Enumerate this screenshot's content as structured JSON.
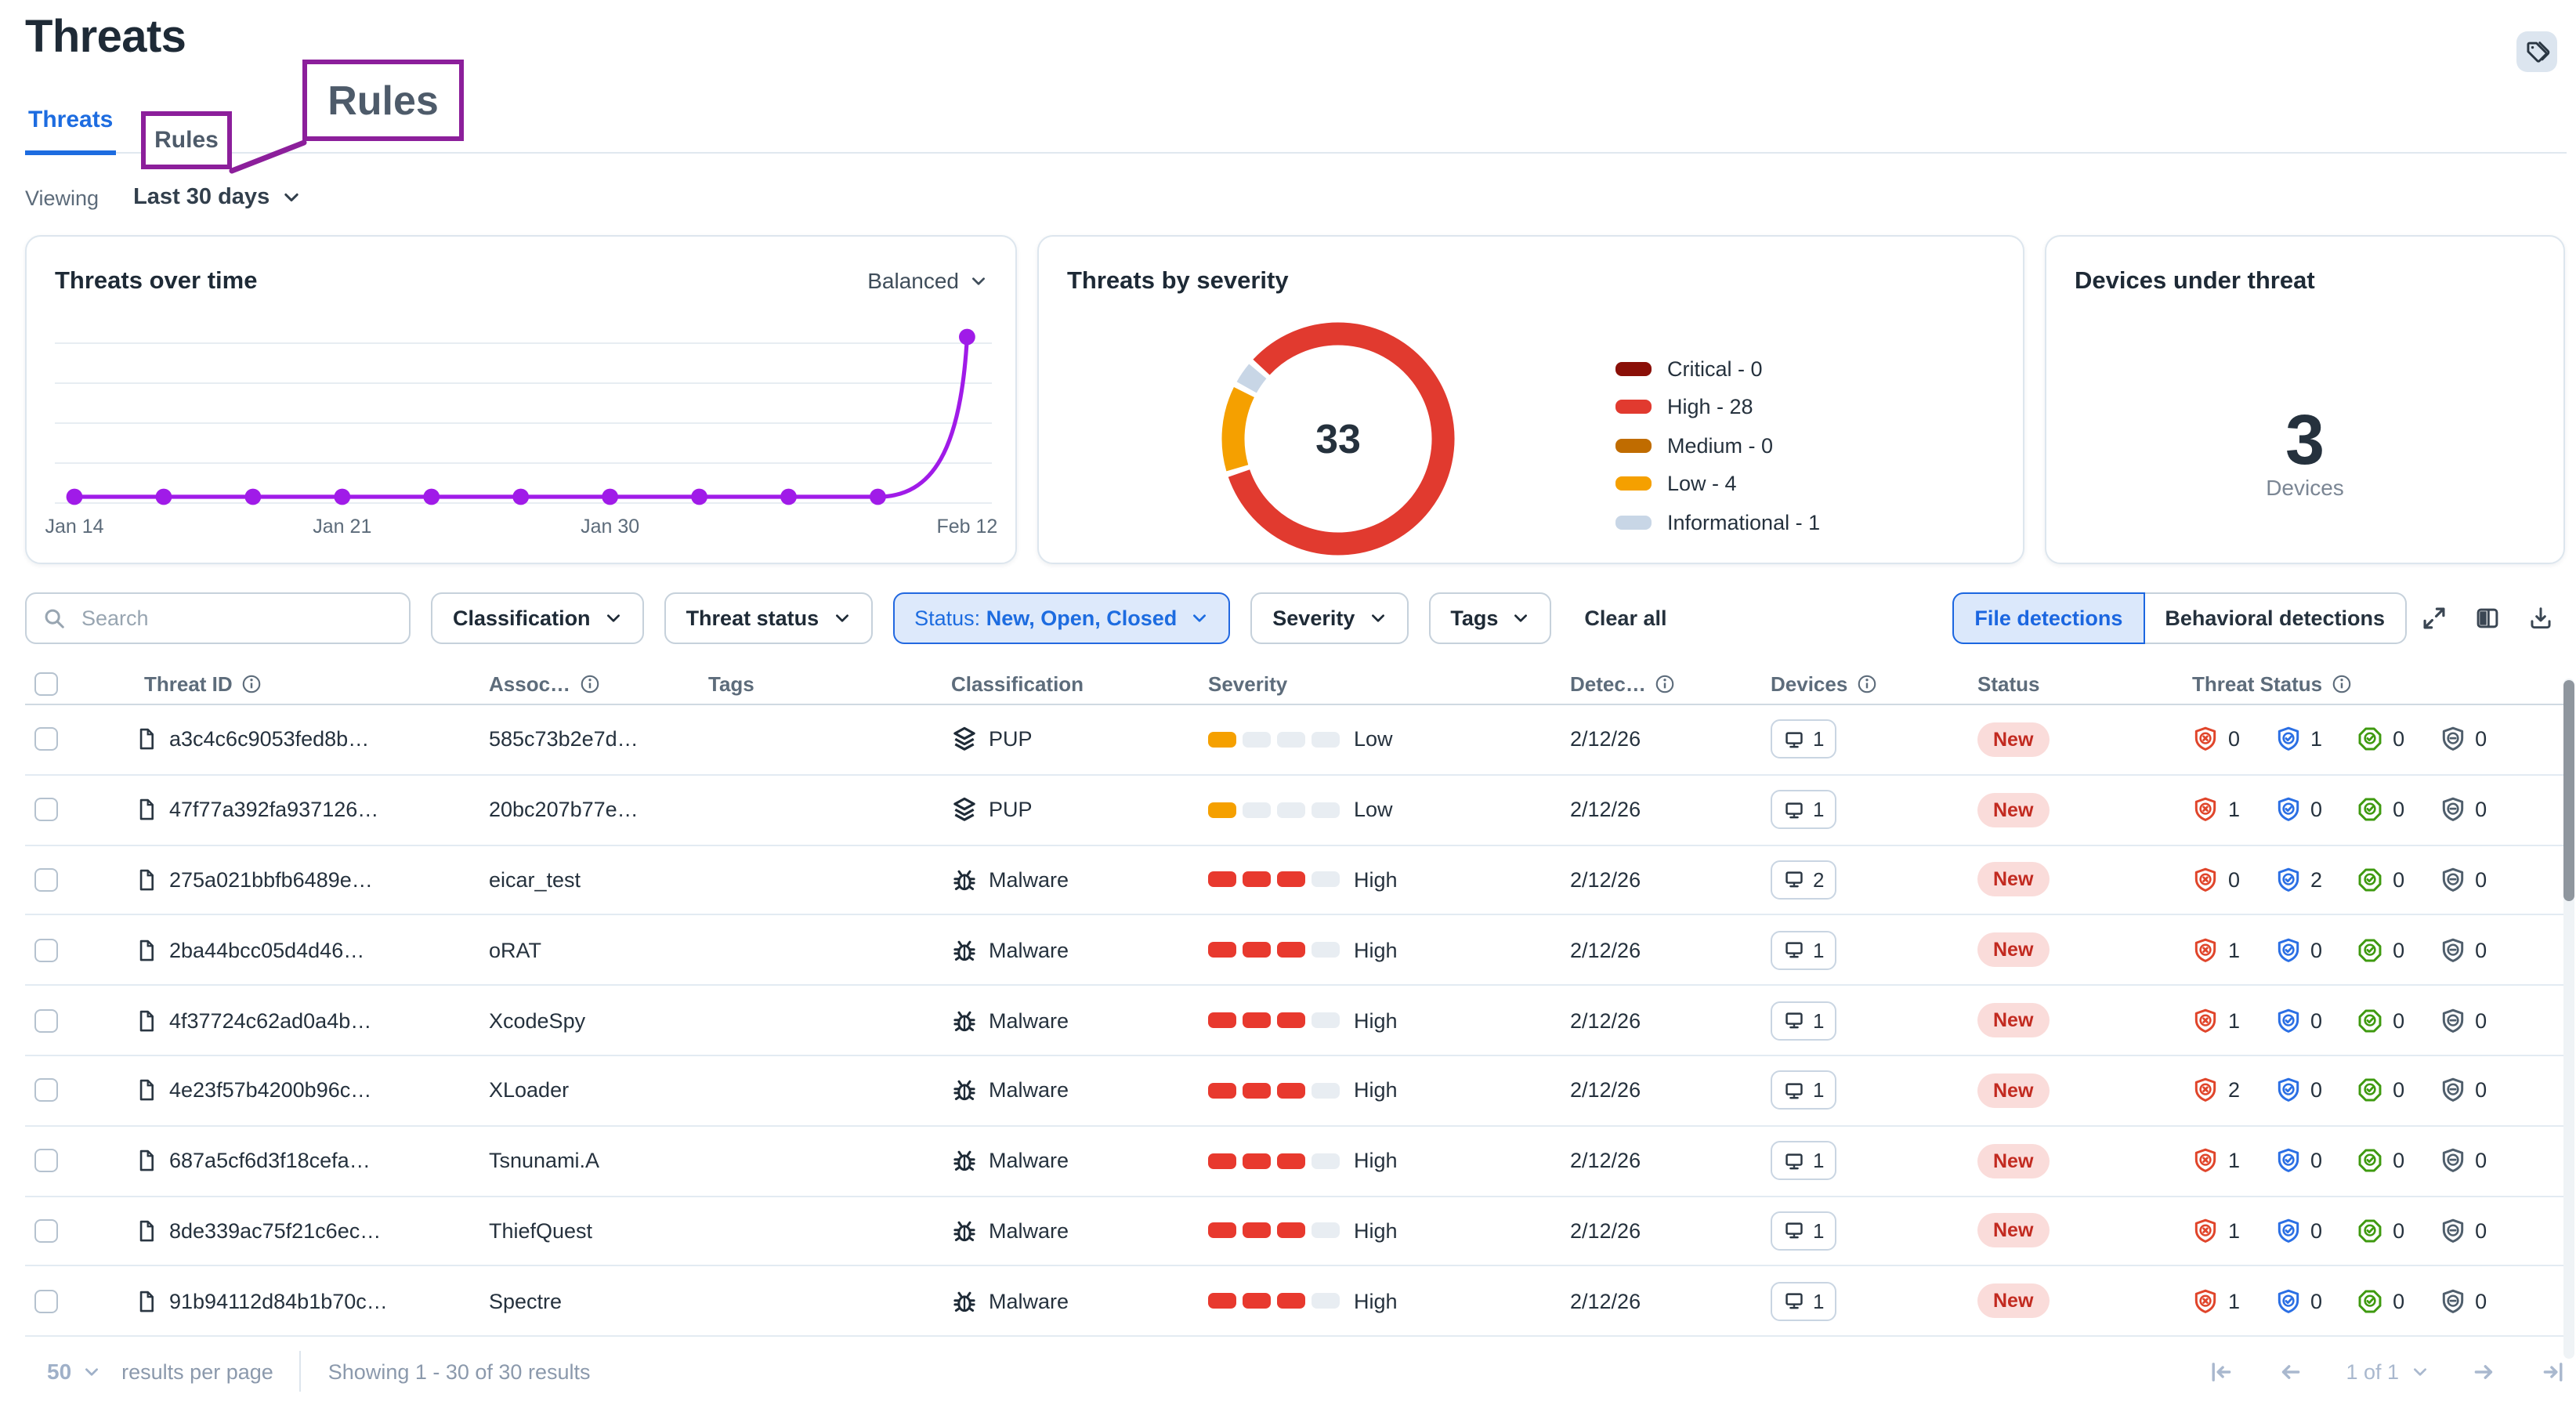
{
  "header": {
    "title": "Threats",
    "tabs": [
      {
        "label": "Threats",
        "active": true
      },
      {
        "label": "Rules",
        "active": false
      }
    ],
    "annotation": {
      "label": "Rules",
      "color": "#8C1F9B"
    }
  },
  "viewing": {
    "label": "Viewing",
    "value": "Last 30 days"
  },
  "cards": {
    "threats_over_time": {
      "title": "Threats over time",
      "mode_selector": "Balanced",
      "chart": {
        "type": "line",
        "color": "#A01BE8",
        "x_tick_labels": [
          "Jan 14",
          "Jan 21",
          "Jan 30",
          "Feb 12"
        ],
        "x_tick_indices": [
          0,
          3,
          6,
          10
        ],
        "values": [
          0,
          0,
          0,
          0,
          0,
          0,
          0,
          0,
          0,
          0,
          33
        ],
        "ymax": 33,
        "gridlines": 5
      }
    },
    "threats_by_severity": {
      "title": "Threats by severity",
      "total": 33,
      "chart": {
        "type": "pie",
        "segments": [
          {
            "label": "Critical",
            "value": 0,
            "color": "#8A0F07"
          },
          {
            "label": "High",
            "value": 28,
            "color": "#E13A2F"
          },
          {
            "label": "Medium",
            "value": 0,
            "color": "#C06C00"
          },
          {
            "label": "Low",
            "value": 4,
            "color": "#F5A000"
          },
          {
            "label": "Informational",
            "value": 1,
            "color": "#C8D6E6"
          }
        ]
      }
    },
    "devices_under_threat": {
      "title": "Devices under threat",
      "value": "3",
      "unit": "Devices"
    }
  },
  "filters": {
    "search_placeholder": "Search",
    "dropdowns_before": [
      "Classification",
      "Threat status"
    ],
    "status_filter": {
      "prefix": "Status:",
      "value": "New, Open, Closed"
    },
    "dropdowns_after": [
      "Severity",
      "Tags"
    ],
    "clear_all": "Clear all",
    "detection_toggle": [
      {
        "label": "File detections",
        "active": true
      },
      {
        "label": "Behavioral detections",
        "active": false
      }
    ],
    "action_icons": [
      "expand",
      "columns",
      "download"
    ]
  },
  "table": {
    "columns": [
      {
        "id": "threat_id",
        "label": "Threat ID",
        "info": true
      },
      {
        "id": "assoc",
        "label": "Assoc…",
        "info": true
      },
      {
        "id": "tags",
        "label": "Tags",
        "info": false
      },
      {
        "id": "classification",
        "label": "Classification",
        "info": false
      },
      {
        "id": "severity",
        "label": "Severity",
        "info": false
      },
      {
        "id": "detected",
        "label": "Detec…",
        "info": true
      },
      {
        "id": "devices",
        "label": "Devices",
        "info": true
      },
      {
        "id": "status",
        "label": "Status",
        "info": false
      },
      {
        "id": "threat_status",
        "label": "Threat Status",
        "info": true
      }
    ],
    "severity_levels": {
      "Low": {
        "filled": 1,
        "color": "#F5A000"
      },
      "High": {
        "filled": 3,
        "color": "#E8392E"
      }
    },
    "status_styles": {
      "New": {
        "bg": "#FADCDA",
        "fg": "#C22A20"
      }
    },
    "threat_status_icons": [
      {
        "name": "shield-x",
        "color": "#E0452B"
      },
      {
        "name": "shield-check",
        "color": "#2B6FE4"
      },
      {
        "name": "octagon-check",
        "color": "#3F9A10"
      },
      {
        "name": "shield-minus",
        "color": "#4F5E6C"
      }
    ],
    "rows": [
      {
        "threat_id": "a3c4c6c9053fed8b…",
        "assoc": "585c73b2e7d…",
        "tags": "",
        "classification": "PUP",
        "classification_icon": "layers",
        "severity": "Low",
        "detected": "2/12/26",
        "devices": 1,
        "status": "New",
        "threat_status": [
          0,
          1,
          0,
          0
        ]
      },
      {
        "threat_id": "47f77a392fa937126…",
        "assoc": "20bc207b77e…",
        "tags": "",
        "classification": "PUP",
        "classification_icon": "layers",
        "severity": "Low",
        "detected": "2/12/26",
        "devices": 1,
        "status": "New",
        "threat_status": [
          1,
          0,
          0,
          0
        ]
      },
      {
        "threat_id": "275a021bbfb6489e…",
        "assoc": "eicar_test",
        "tags": "",
        "classification": "Malware",
        "classification_icon": "bug",
        "severity": "High",
        "detected": "2/12/26",
        "devices": 2,
        "status": "New",
        "threat_status": [
          0,
          2,
          0,
          0
        ]
      },
      {
        "threat_id": "2ba44bcc05d4d46…",
        "assoc": "oRAT",
        "tags": "",
        "classification": "Malware",
        "classification_icon": "bug",
        "severity": "High",
        "detected": "2/12/26",
        "devices": 1,
        "status": "New",
        "threat_status": [
          1,
          0,
          0,
          0
        ]
      },
      {
        "threat_id": "4f37724c62ad0a4b…",
        "assoc": "XcodeSpy",
        "tags": "",
        "classification": "Malware",
        "classification_icon": "bug",
        "severity": "High",
        "detected": "2/12/26",
        "devices": 1,
        "status": "New",
        "threat_status": [
          1,
          0,
          0,
          0
        ]
      },
      {
        "threat_id": "4e23f57b4200b96c…",
        "assoc": "XLoader",
        "tags": "",
        "classification": "Malware",
        "classification_icon": "bug",
        "severity": "High",
        "detected": "2/12/26",
        "devices": 1,
        "status": "New",
        "threat_status": [
          2,
          0,
          0,
          0
        ]
      },
      {
        "threat_id": "687a5cf6d3f18cefa…",
        "assoc": "Tsnunami.A",
        "tags": "",
        "classification": "Malware",
        "classification_icon": "bug",
        "severity": "High",
        "detected": "2/12/26",
        "devices": 1,
        "status": "New",
        "threat_status": [
          1,
          0,
          0,
          0
        ]
      },
      {
        "threat_id": "8de339ac75f21c6ec…",
        "assoc": "ThiefQuest",
        "tags": "",
        "classification": "Malware",
        "classification_icon": "bug",
        "severity": "High",
        "detected": "2/12/26",
        "devices": 1,
        "status": "New",
        "threat_status": [
          1,
          0,
          0,
          0
        ]
      },
      {
        "threat_id": "91b94112d84b1b70c…",
        "assoc": "Spectre",
        "tags": "",
        "classification": "Malware",
        "classification_icon": "bug",
        "severity": "High",
        "detected": "2/12/26",
        "devices": 1,
        "status": "New",
        "threat_status": [
          1,
          0,
          0,
          0
        ]
      }
    ]
  },
  "footer": {
    "results_per_page": "50",
    "results_per_page_label": "results per page",
    "showing": "Showing 1 - 30 of 30 results",
    "page_indicator": "1 of 1"
  }
}
